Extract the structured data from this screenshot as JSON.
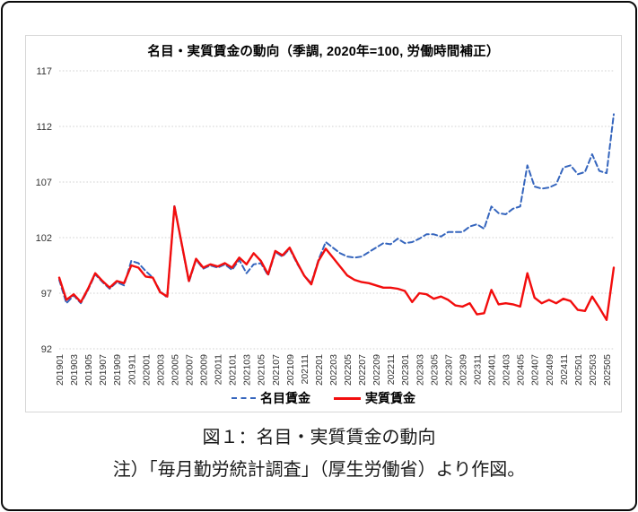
{
  "figure": {
    "chart_title": "名目・実質賃金の動向（季調, 2020年=100, 労働時間補正）",
    "caption": "図１：名目・実質賃金の動向",
    "note": "注）「毎月勤労統計調査」（厚生労働省）より作図。"
  },
  "style": {
    "accent_blue": "#3565bd",
    "accent_red": "#f20d0d",
    "grid_color": "#d2d2d2",
    "tick_color": "#333333"
  },
  "legend": [
    {
      "label": "名目賃金",
      "color": "#3565bd",
      "style": "dashed"
    },
    {
      "label": "実質賃金",
      "color": "#f20d0d",
      "style": "solid"
    }
  ],
  "chart_data": {
    "type": "line",
    "title": "名目・実質賃金の動向（季調, 2020年=100, 労働時間補正）",
    "xlabel": "",
    "ylabel": "",
    "ylim": [
      92,
      117
    ],
    "yticks": [
      92,
      97,
      102,
      107,
      112,
      117
    ],
    "xtick_every": 2,
    "grid": true,
    "legend_position": "bottom",
    "x": [
      "201901",
      "201902",
      "201903",
      "201904",
      "201905",
      "201906",
      "201907",
      "201908",
      "201909",
      "201910",
      "201911",
      "201912",
      "202001",
      "202002",
      "202003",
      "202004",
      "202005",
      "202006",
      "202007",
      "202008",
      "202009",
      "202010",
      "202011",
      "202012",
      "202101",
      "202102",
      "202103",
      "202104",
      "202105",
      "202106",
      "202107",
      "202108",
      "202109",
      "202110",
      "202111",
      "202112",
      "202201",
      "202202",
      "202203",
      "202204",
      "202205",
      "202206",
      "202207",
      "202208",
      "202209",
      "202210",
      "202211",
      "202212",
      "202301",
      "202302",
      "202303",
      "202304",
      "202305",
      "202306",
      "202307",
      "202308",
      "202309",
      "202310",
      "202311",
      "202312",
      "202401",
      "202402",
      "202403",
      "202404",
      "202405",
      "202406",
      "202407",
      "202408",
      "202409",
      "202410",
      "202411",
      "202412",
      "202501",
      "202502",
      "202503",
      "202504",
      "202505",
      "202506"
    ],
    "series": [
      {
        "name": "名目賃金",
        "values": [
          98.2,
          96.1,
          96.8,
          96.1,
          97.3,
          98.7,
          98.0,
          97.4,
          98.0,
          97.7,
          99.9,
          99.7,
          99.0,
          98.4,
          97.2,
          96.6,
          104.9,
          101.4,
          98.0,
          100.0,
          99.2,
          99.5,
          99.3,
          99.6,
          99.1,
          100.0,
          98.8,
          99.6,
          99.7,
          98.6,
          100.7,
          100.3,
          101.0,
          99.7,
          98.6,
          97.9,
          100.0,
          101.6,
          101.1,
          100.6,
          100.3,
          100.2,
          100.3,
          100.7,
          101.1,
          101.5,
          101.4,
          101.9,
          101.5,
          101.6,
          101.9,
          102.3,
          102.3,
          102.1,
          102.5,
          102.5,
          102.5,
          103.0,
          103.2,
          102.8,
          104.8,
          104.2,
          104.1,
          104.6,
          104.8,
          108.5,
          106.6,
          106.4,
          106.5,
          106.8,
          108.3,
          108.5,
          107.7,
          107.9,
          109.5,
          108.0,
          107.8,
          113.1
        ]
      },
      {
        "name": "実質賃金",
        "values": [
          98.4,
          96.4,
          96.9,
          96.2,
          97.4,
          98.8,
          98.1,
          97.5,
          98.1,
          97.9,
          99.5,
          99.3,
          98.5,
          98.4,
          97.1,
          96.7,
          104.8,
          101.5,
          98.1,
          100.1,
          99.3,
          99.6,
          99.4,
          99.7,
          99.3,
          100.2,
          99.6,
          100.6,
          99.9,
          98.7,
          100.8,
          100.4,
          101.1,
          99.8,
          98.6,
          97.8,
          99.9,
          101.0,
          100.2,
          99.4,
          98.6,
          98.2,
          98.0,
          97.9,
          97.7,
          97.5,
          97.5,
          97.4,
          97.2,
          96.2,
          97.0,
          96.9,
          96.5,
          96.7,
          96.4,
          95.9,
          95.8,
          96.1,
          95.1,
          95.2,
          97.3,
          96.0,
          96.1,
          96.0,
          95.8,
          98.8,
          96.6,
          96.1,
          96.4,
          96.1,
          96.5,
          96.3,
          95.5,
          95.4,
          96.7,
          95.7,
          94.6,
          99.3
        ]
      }
    ]
  }
}
